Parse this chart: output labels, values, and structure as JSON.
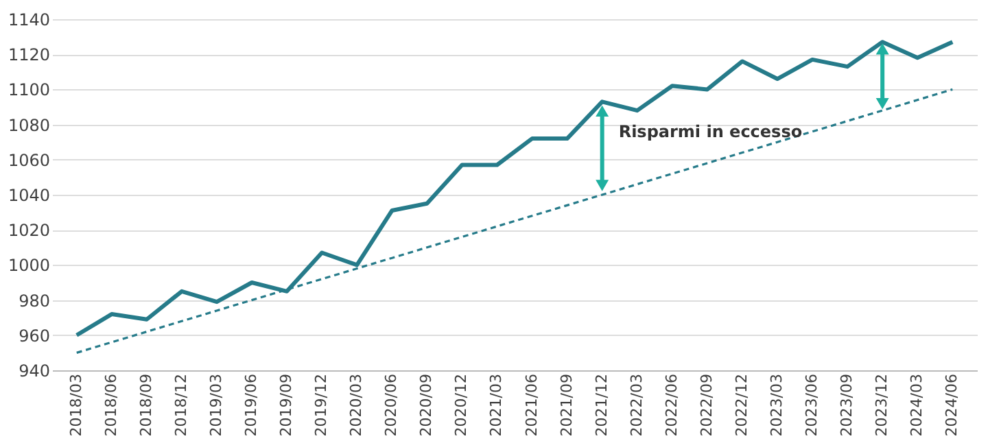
{
  "chart_data": {
    "type": "line",
    "categories": [
      "2018/03",
      "2018/06",
      "2018/09",
      "2018/12",
      "2019/03",
      "2019/06",
      "2019/09",
      "2019/12",
      "2020/03",
      "2020/06",
      "2020/09",
      "2020/12",
      "2021/03",
      "2021/06",
      "2021/09",
      "2021/12",
      "2022/03",
      "2022/06",
      "2022/09",
      "2022/12",
      "2023/03",
      "2023/06",
      "2023/09",
      "2023/12",
      "2024/03",
      "2024/06"
    ],
    "series": [
      {
        "color": "#267b8a",
        "line_style": "solid",
        "values": [
          960,
          972,
          969,
          985,
          979,
          990,
          985,
          1007,
          1000,
          1031,
          1035,
          1057,
          1057,
          1072,
          1072,
          1093,
          1088,
          1102,
          1100,
          1116,
          1106,
          1117,
          1113,
          1127,
          1118,
          1127
        ]
      },
      {
        "type": "line",
        "line_style": "dashed",
        "color": "#267b8a",
        "values": [
          950,
          956,
          962,
          968,
          974,
          980,
          986,
          992,
          998,
          1004,
          1010,
          1016,
          1022,
          1028,
          1034,
          1040,
          1046,
          1052,
          1058,
          1064,
          1070,
          1076,
          1082,
          1088,
          1094,
          1100
        ]
      }
    ],
    "annotations": [
      "Risparmi in eccesso"
    ],
    "ylim": [
      940,
      1140
    ],
    "yticks": [
      940,
      960,
      980,
      1000,
      1020,
      1040,
      1060,
      1080,
      1100,
      1120,
      1140
    ],
    "grid": "y"
  }
}
